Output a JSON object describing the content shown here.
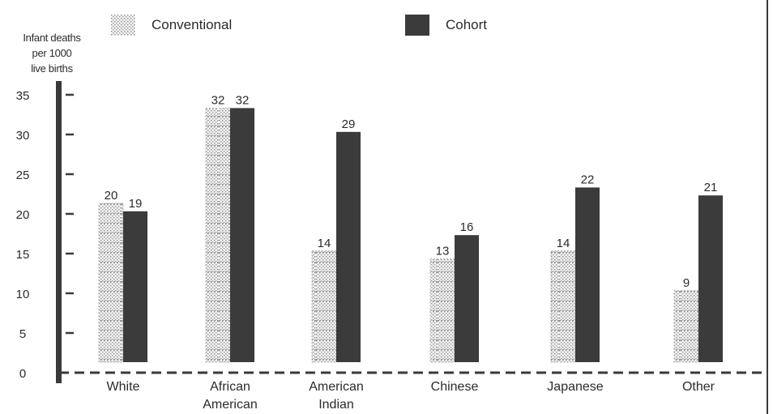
{
  "chart_data": {
    "type": "bar",
    "categories": [
      [
        "White"
      ],
      [
        "African",
        "American"
      ],
      [
        "American",
        "Indian"
      ],
      [
        "Chinese"
      ],
      [
        "Japanese"
      ],
      [
        "Other"
      ]
    ],
    "series": [
      {
        "name": "Conventional",
        "values": [
          20,
          32,
          14,
          13,
          14,
          9
        ]
      },
      {
        "name": "Cohort",
        "values": [
          19,
          32,
          29,
          16,
          22,
          21
        ]
      }
    ],
    "ylabel": [
      "Infant deaths",
      "per 1000",
      "live births"
    ],
    "ylim": [
      0,
      35
    ],
    "yticks": [
      0,
      5,
      10,
      15,
      20,
      25,
      30,
      35
    ],
    "legend_position": "top",
    "grid": false,
    "colors": {
      "conventional_fill": "#f2f2f2",
      "conventional_pattern": "#8a8a8a",
      "cohort_fill": "#3b3b3b",
      "axis": "#3a3a3a"
    }
  }
}
